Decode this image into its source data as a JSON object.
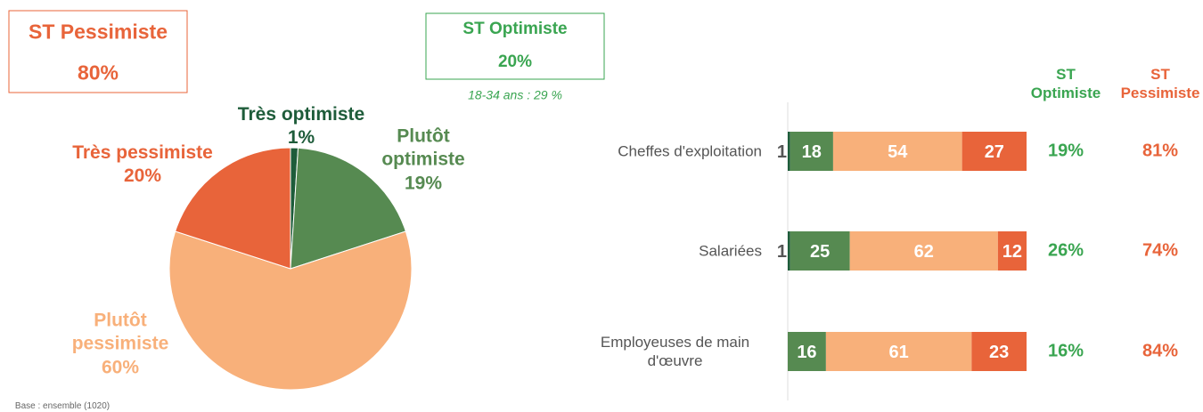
{
  "chart_data": [
    {
      "type": "pie",
      "categories": [
        "Très optimiste",
        "Plutôt optimiste",
        "Plutôt pessimiste",
        "Très pessimiste"
      ],
      "values": [
        1,
        19,
        60,
        20
      ],
      "value_labels": [
        "1%",
        "19%",
        "60%",
        "20%"
      ],
      "colors": [
        "#1e5c3a",
        "#568a51",
        "#f8b07a",
        "#e8643a"
      ],
      "summary": [
        {
          "label": "ST Pessimiste",
          "value": 80,
          "value_label": "80%",
          "color": "#e8643a"
        },
        {
          "label": "ST Optimiste",
          "value": 20,
          "value_label": "20%",
          "color": "#3aa551",
          "note": "18-34 ans : 29 %"
        }
      ],
      "footnote": "Base : ensemble (1020)"
    },
    {
      "type": "stacked_bar_horizontal",
      "categories": [
        "Cheffes d'exploitation",
        "Salariées",
        "Employeuses de main d'œuvre"
      ],
      "xlim": [
        0,
        100
      ],
      "series": [
        {
          "color": "#1e5c3a",
          "values": [
            1,
            1,
            null
          ]
        },
        {
          "color": "#568a51",
          "values": [
            18,
            25,
            16
          ]
        },
        {
          "color": "#f8b07a",
          "values": [
            54,
            62,
            61
          ]
        },
        {
          "color": "#e8643a",
          "values": [
            27,
            12,
            23
          ]
        }
      ],
      "columns": [
        {
          "name": "ST Optimiste",
          "color": "#3aa551",
          "values": [
            19,
            26,
            16
          ],
          "value_labels": [
            "19%",
            "26%",
            "16%"
          ]
        },
        {
          "name": "ST Pessimiste",
          "color": "#e8643a",
          "values": [
            81,
            74,
            84
          ],
          "value_labels": [
            "81%",
            "74%",
            "84%"
          ]
        }
      ]
    }
  ]
}
